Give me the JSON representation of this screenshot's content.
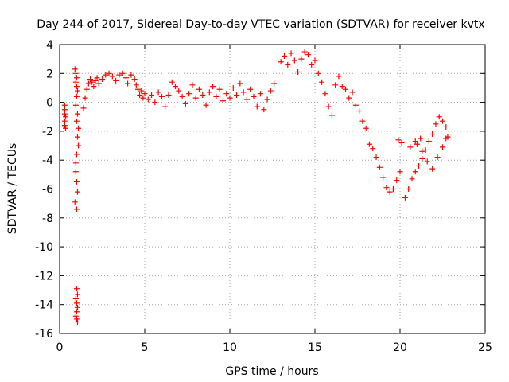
{
  "chart_data": {
    "type": "scatter",
    "title": "Day 244 of 2017, Sidereal Day-to-day VTEC variation (SDTVAR) for receiver kvtx",
    "xlabel": "GPS time / hours",
    "ylabel": "SDTVAR / TECUs",
    "xlim": [
      0,
      25
    ],
    "ylim": [
      -16,
      4
    ],
    "xticks": [
      0,
      5,
      10,
      15,
      20,
      25
    ],
    "yticks": [
      4,
      2,
      0,
      -2,
      -4,
      -6,
      -8,
      -10,
      -12,
      -14,
      -16
    ],
    "grid": true,
    "marker": "plus",
    "color": "#ff0000",
    "series": [
      {
        "name": "sdtvar",
        "x": [
          0.3,
          0.3,
          0.3,
          0.35,
          0.3,
          0.3,
          0.35,
          0.3
        ],
        "y": [
          -0.2,
          -0.5,
          -0.8,
          -1.0,
          -1.3,
          -1.6,
          -1.8,
          -0.6
        ]
      },
      {
        "name": "sdtvar",
        "x": [
          0.9,
          0.95,
          1.0,
          0.95,
          1.0,
          1.05,
          1.0,
          0.95,
          1.05,
          1.0,
          1.1,
          1.05,
          1.1,
          1.0,
          0.95,
          0.95,
          1.0,
          1.05,
          0.9,
          1.0
        ],
        "y": [
          2.3,
          2.0,
          1.7,
          1.4,
          1.1,
          0.8,
          0.4,
          -0.2,
          -0.8,
          -1.3,
          -1.8,
          -2.4,
          -3.0,
          -3.6,
          -4.2,
          -4.8,
          -5.5,
          -6.2,
          -6.9,
          -7.4
        ]
      },
      {
        "name": "sdtvar",
        "x": [
          1.0,
          1.05,
          0.95,
          1.0,
          1.05,
          1.0,
          0.95,
          1.0,
          1.05
        ],
        "y": [
          -12.9,
          -13.3,
          -13.6,
          -13.9,
          -14.2,
          -14.5,
          -14.8,
          -15.0,
          -15.2
        ]
      },
      {
        "name": "sdtvar",
        "x": [
          1.4,
          1.5,
          1.6,
          1.7,
          1.8,
          1.9,
          2.0,
          2.1,
          2.2,
          2.3,
          2.5,
          2.7,
          2.9,
          3.1,
          3.3,
          3.5,
          3.7,
          3.9,
          4.0,
          4.2,
          4.4
        ],
        "y": [
          -0.4,
          0.3,
          0.9,
          1.3,
          1.6,
          1.4,
          1.1,
          1.5,
          1.7,
          1.3,
          1.6,
          1.9,
          2.0,
          1.8,
          1.5,
          1.9,
          2.0,
          1.7,
          1.3,
          1.9,
          1.6
        ]
      },
      {
        "name": "sdtvar",
        "x": [
          4.5,
          4.6,
          4.7,
          4.8,
          4.9,
          5.0,
          5.2,
          5.4,
          5.6,
          5.8,
          6.0,
          6.2,
          6.4,
          6.6,
          6.8,
          7.0,
          7.2,
          7.4,
          7.6,
          7.8,
          8.0,
          8.2,
          8.4,
          8.6,
          8.8,
          9.0
        ],
        "y": [
          1.2,
          0.9,
          0.5,
          0.8,
          0.3,
          0.6,
          0.2,
          0.5,
          0.0,
          0.7,
          0.4,
          -0.3,
          0.5,
          1.4,
          1.1,
          0.8,
          0.4,
          -0.1,
          0.6,
          1.2,
          0.3,
          0.9,
          0.5,
          -0.2,
          0.7,
          1.1
        ]
      },
      {
        "name": "sdtvar",
        "x": [
          9.2,
          9.4,
          9.6,
          9.8,
          10.0,
          10.2,
          10.4,
          10.6,
          10.8,
          11.0,
          11.2,
          11.4,
          11.6,
          11.8,
          12.0,
          12.2,
          12.4,
          12.6
        ],
        "y": [
          0.4,
          0.9,
          0.1,
          0.6,
          0.3,
          1.0,
          0.5,
          1.3,
          0.7,
          0.2,
          0.9,
          0.4,
          -0.3,
          0.6,
          -0.5,
          0.2,
          0.8,
          1.3
        ]
      },
      {
        "name": "sdtvar",
        "x": [
          13.0,
          13.2,
          13.4,
          13.6,
          13.8,
          14.0,
          14.2,
          14.4,
          14.6,
          14.8,
          15.0,
          15.2,
          15.4,
          15.6,
          15.8,
          16.0,
          16.2,
          16.4,
          16.6
        ],
        "y": [
          2.8,
          3.2,
          2.6,
          3.4,
          2.9,
          2.1,
          3.0,
          3.5,
          3.3,
          2.6,
          2.9,
          2.0,
          1.4,
          0.6,
          -0.3,
          -0.9,
          1.2,
          1.8,
          1.1
        ]
      },
      {
        "name": "sdtvar",
        "x": [
          16.8,
          17.0,
          17.2,
          17.4,
          17.6,
          17.8,
          18.0,
          18.2,
          18.4,
          18.6,
          18.8,
          19.0,
          19.2,
          19.4,
          19.6,
          19.8,
          20.0
        ],
        "y": [
          0.9,
          0.3,
          0.7,
          -0.2,
          -0.6,
          -1.3,
          -1.8,
          -2.9,
          -3.2,
          -3.8,
          -4.5,
          -5.2,
          -5.9,
          -6.2,
          -6.0,
          -5.4,
          -4.8
        ]
      },
      {
        "name": "sdtvar",
        "x": [
          19.9,
          20.1,
          20.3,
          20.5,
          20.7,
          20.9,
          21.1,
          21.3,
          21.5,
          21.7,
          21.9,
          22.1,
          22.3,
          22.5,
          22.7,
          22.8
        ],
        "y": [
          -2.6,
          -2.8,
          -6.6,
          -6.0,
          -5.3,
          -4.8,
          -4.4,
          -3.9,
          -3.3,
          -2.7,
          -2.2,
          -1.5,
          -1.0,
          -1.3,
          -1.7,
          -2.4
        ]
      },
      {
        "name": "sdtvar",
        "x": [
          21.0,
          21.3,
          21.6,
          21.9,
          22.2,
          22.5,
          22.7,
          20.6,
          20.9,
          21.2
        ],
        "y": [
          -2.9,
          -3.4,
          -4.1,
          -4.6,
          -3.8,
          -3.1,
          -2.5,
          -3.1,
          -2.7,
          -2.5
        ]
      }
    ]
  }
}
